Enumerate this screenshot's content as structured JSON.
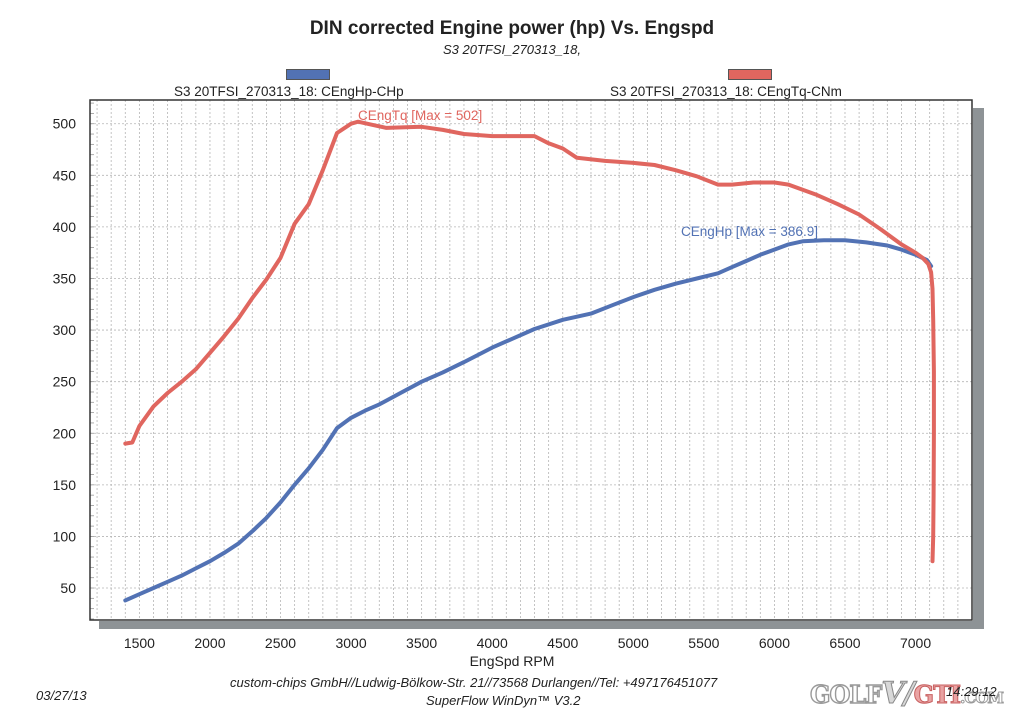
{
  "colors": {
    "hp": "#5272b4",
    "tq": "#e0665f",
    "frame": "#333333",
    "shadow": "#8e9396",
    "grid": "#b5b5b5",
    "text": "#222222"
  },
  "chart_data": {
    "type": "line",
    "title": "DIN corrected Engine power (hp) Vs. Engspd",
    "subtitle": "S3 20TFSI_270313_18,",
    "xlabel": "EngSpd RPM",
    "ylabel": "",
    "xlim": [
      1150,
      7400
    ],
    "ylim": [
      19,
      523
    ],
    "grid": true,
    "x_ticks": [
      1500,
      2000,
      2500,
      3000,
      3500,
      4000,
      4500,
      5000,
      5500,
      6000,
      6500,
      7000
    ],
    "y_ticks": [
      50,
      100,
      150,
      200,
      250,
      300,
      350,
      400,
      450,
      500
    ],
    "legend_position": "top",
    "series": [
      {
        "name": "S3 20TFSI_270313_18: CEngHp-CHp",
        "key": "hp",
        "annotation": "CEngHp [Max = 386.9]",
        "max": 386.9,
        "points": [
          [
            1400,
            38
          ],
          [
            1500,
            44
          ],
          [
            1600,
            50
          ],
          [
            1700,
            56
          ],
          [
            1800,
            62
          ],
          [
            1900,
            69
          ],
          [
            2000,
            76
          ],
          [
            2100,
            84
          ],
          [
            2200,
            93
          ],
          [
            2300,
            105
          ],
          [
            2400,
            118
          ],
          [
            2500,
            133
          ],
          [
            2600,
            150
          ],
          [
            2700,
            166
          ],
          [
            2800,
            184
          ],
          [
            2900,
            205
          ],
          [
            3000,
            215
          ],
          [
            3100,
            222
          ],
          [
            3200,
            228
          ],
          [
            3350,
            239
          ],
          [
            3500,
            250
          ],
          [
            3650,
            259
          ],
          [
            3800,
            269
          ],
          [
            4000,
            283
          ],
          [
            4150,
            292
          ],
          [
            4300,
            301
          ],
          [
            4500,
            310
          ],
          [
            4700,
            316
          ],
          [
            4850,
            324
          ],
          [
            5000,
            332
          ],
          [
            5150,
            339
          ],
          [
            5300,
            345
          ],
          [
            5450,
            350
          ],
          [
            5600,
            355
          ],
          [
            5700,
            361
          ],
          [
            5800,
            367
          ],
          [
            5900,
            373
          ],
          [
            6000,
            378
          ],
          [
            6100,
            383
          ],
          [
            6200,
            386
          ],
          [
            6350,
            387
          ],
          [
            6500,
            387
          ],
          [
            6650,
            385
          ],
          [
            6800,
            382
          ],
          [
            6900,
            378
          ],
          [
            7000,
            373
          ],
          [
            7080,
            368
          ],
          [
            7110,
            362
          ]
        ]
      },
      {
        "name": "S3 20TFSI_270313_18: CEngTq-CNm",
        "key": "tq",
        "annotation": "CEngTq [Max = 502]",
        "max": 502,
        "points": [
          [
            1400,
            190
          ],
          [
            1450,
            191
          ],
          [
            1500,
            207
          ],
          [
            1600,
            226
          ],
          [
            1700,
            239
          ],
          [
            1800,
            250
          ],
          [
            1900,
            262
          ],
          [
            2000,
            278
          ],
          [
            2100,
            294
          ],
          [
            2200,
            311
          ],
          [
            2300,
            331
          ],
          [
            2400,
            349
          ],
          [
            2500,
            370
          ],
          [
            2600,
            403
          ],
          [
            2700,
            422
          ],
          [
            2800,
            455
          ],
          [
            2900,
            491
          ],
          [
            3000,
            500
          ],
          [
            3050,
            502
          ],
          [
            3150,
            499
          ],
          [
            3250,
            496
          ],
          [
            3500,
            497
          ],
          [
            3650,
            494
          ],
          [
            3800,
            490
          ],
          [
            4000,
            488
          ],
          [
            4300,
            488
          ],
          [
            4400,
            481
          ],
          [
            4500,
            476
          ],
          [
            4600,
            467
          ],
          [
            4800,
            464
          ],
          [
            5000,
            462
          ],
          [
            5150,
            460
          ],
          [
            5300,
            455
          ],
          [
            5450,
            449
          ],
          [
            5600,
            441
          ],
          [
            5700,
            441
          ],
          [
            5850,
            443
          ],
          [
            6000,
            443
          ],
          [
            6100,
            441
          ],
          [
            6300,
            431
          ],
          [
            6450,
            422
          ],
          [
            6600,
            412
          ],
          [
            6750,
            398
          ],
          [
            6900,
            383
          ],
          [
            7000,
            375
          ],
          [
            7050,
            370
          ],
          [
            7090,
            364
          ],
          [
            7110,
            356
          ],
          [
            7120,
            340
          ],
          [
            7125,
            310
          ],
          [
            7130,
            260
          ],
          [
            7130,
            200
          ],
          [
            7128,
            140
          ],
          [
            7125,
            100
          ],
          [
            7120,
            76
          ]
        ]
      }
    ]
  },
  "footer": {
    "company": "custom-chips GmbH//Ludwig-Bölkow-Str. 21//73568 Durlangen//Tel: +497176451077",
    "software": "SuperFlow WinDyn™ V3.2",
    "date": "03/27/13",
    "time": "14:29:12"
  },
  "watermark": {
    "part1": "GOLF",
    "part2": "V",
    "part3": "/",
    "part4": "GTI",
    "part5": ".COM"
  }
}
